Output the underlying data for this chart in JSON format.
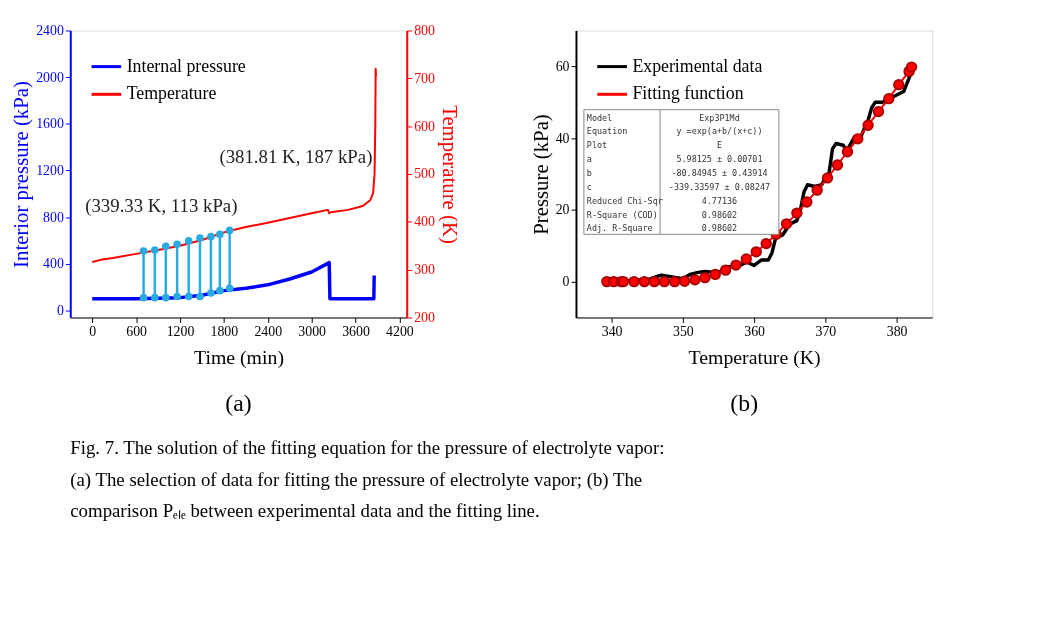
{
  "chart_data": [
    {
      "type": "line",
      "xlabel": "Time (min)",
      "ylabel": "Interior pressure (kPa)",
      "y2label": "Temperature (K)",
      "xlim": [
        -300,
        4300
      ],
      "xticks": [
        0,
        600,
        1200,
        1800,
        2400,
        3000,
        3600,
        4200
      ],
      "ylim": [
        -60,
        2400
      ],
      "yticks": [
        0,
        400,
        800,
        1200,
        1600,
        2000,
        2400
      ],
      "y2lim": [
        200,
        800
      ],
      "y2ticks": [
        200,
        300,
        400,
        500,
        600,
        700,
        800
      ],
      "legend": "top left",
      "grid": false,
      "series": [
        {
          "name": "Internal pressure",
          "color": "#0000ff",
          "x": [
            0,
            600,
            1200,
            1500,
            1800,
            2100,
            2400,
            2700,
            3000,
            3240,
            3250,
            3850,
            3855
          ],
          "values": [
            100,
            100,
            110,
            130,
            170,
            190,
            220,
            270,
            330,
            410,
            100,
            100,
            300
          ]
        },
        {
          "name": "Temperature",
          "color": "#ff0000",
          "axis": "y2",
          "x": [
            0,
            100,
            300,
            600,
            900,
            1200,
            1500,
            1800,
            1900,
            2100,
            2400,
            2700,
            3000,
            3220,
            3240,
            3260,
            3500,
            3700,
            3800,
            3840,
            3860,
            3870,
            3875,
            3880
          ],
          "values": [
            316,
            320,
            325,
            333,
            341,
            350,
            362,
            378,
            382,
            389,
            398,
            408,
            418,
            425,
            418,
            420,
            425,
            433,
            445,
            460,
            500,
            600,
            720,
            705
          ]
        },
        {
          "type": "scatter",
          "color": "#29abe2",
          "x": [
            702,
            856,
            1006,
            1161,
            1319,
            1473,
            1623,
            1745,
            1879
          ],
          "values": [
            110,
            110,
            110,
            120,
            120,
            120,
            150,
            170,
            190
          ]
        },
        {
          "type": "scatter",
          "color": "#29abe2",
          "axis": "y2",
          "x": [
            702,
            856,
            1006,
            1161,
            1319,
            1473,
            1623,
            1745,
            1879
          ],
          "values": [
            339,
            341,
            349,
            353,
            360,
            366,
            369,
            374,
            382
          ],
          "errors": [
            [
              242,
              339
            ],
            [
              242,
              341
            ],
            [
              242,
              349
            ],
            [
              243,
              353
            ],
            [
              243,
              360
            ],
            [
              244,
              366
            ],
            [
              250,
              369
            ],
            [
              255,
              374
            ],
            [
              260,
              382
            ]
          ]
        }
      ],
      "annotations": [
        "(339.33 K, 113 kPa)",
        "(381.81 K, 187 kPa)",
        "(a)",
        "Fig. 7.  The solution of the fitting equation for the pressure of electrolyte vapor:",
        "(a) The selection of data for fitting the pressure of electrolyte vapor; (b) The",
        "comparison Pₑₗₑ between experimental data and the fitting line."
      ]
    },
    {
      "type": "line",
      "xlabel": "Temperature (K)",
      "ylabel": "Pressure (kPa)",
      "xlim": [
        335,
        385
      ],
      "xticks": [
        340,
        350,
        360,
        370,
        380
      ],
      "ylim": [
        -10,
        70
      ],
      "yticks": [
        0,
        20,
        40,
        60
      ],
      "legend": "top left",
      "grid": false,
      "series": [
        {
          "name": "Experimental data",
          "color": "#000000",
          "x": [
            339.3,
            345,
            346.5,
            347,
            350,
            351,
            352,
            353,
            355,
            356,
            358,
            359,
            360,
            361,
            362,
            362.5,
            363,
            364,
            365,
            366,
            366.5,
            367,
            367.5,
            368.5,
            369.5,
            370,
            370.5,
            371,
            371.5,
            372.5,
            373,
            374,
            375,
            376,
            376.5,
            377,
            378,
            379,
            380,
            381,
            382
          ],
          "values": [
            0,
            0.5,
            1.5,
            1.8,
            0.8,
            2,
            2.5,
            2.8,
            2.5,
            4,
            4.5,
            5.5,
            4.5,
            6,
            6,
            8,
            12,
            13,
            16,
            17,
            20,
            25,
            27,
            26.5,
            27,
            29,
            30,
            37,
            38.5,
            38,
            36.5,
            40,
            40.5,
            45,
            48.5,
            50,
            50,
            51,
            52,
            53,
            58
          ]
        },
        {
          "name": "Fitting function",
          "color": "#ff0000",
          "marker": "circle",
          "x": [
            339.33,
            340.3,
            341.35,
            341.65,
            343.15,
            344.6,
            346.0,
            347.4,
            348.85,
            350.25,
            351.7,
            353.1,
            354.55,
            356.0,
            357.45,
            358.9,
            360.3,
            361.7,
            363.1,
            364.55,
            366.0,
            367.4,
            368.85,
            370.3,
            371.7,
            373.1,
            374.55,
            376.0,
            377.45,
            378.9,
            380.3,
            381.75,
            382.1
          ],
          "values": [
            0,
            0,
            0,
            0,
            0,
            0,
            0,
            0,
            0,
            0.1,
            0.5,
            1.1,
            2.0,
            3.2,
            4.6,
            6.3,
            8.3,
            10.6,
            13.2,
            16.1,
            19.1,
            22.2,
            25.5,
            28.9,
            32.5,
            36.2,
            39.8,
            43.6,
            47.4,
            51.0,
            54.9,
            58.6,
            59.8
          ]
        }
      ],
      "annotations": [
        "(b)",
        "Model",
        "Exp3P1Md",
        "Equation",
        "y =exp(a+b/(x+c))",
        "Plot",
        "E",
        "a",
        "5.98125 ± 0.00701",
        "b",
        "-80.84945 ± 0.43914",
        "c",
        "-339.33597 ± 0.08247",
        "Reduced Chi-Sqr",
        "4.77136",
        "R-Square (COD)",
        "0.98602",
        "Adj. R-Square",
        "0.98602"
      ]
    }
  ]
}
